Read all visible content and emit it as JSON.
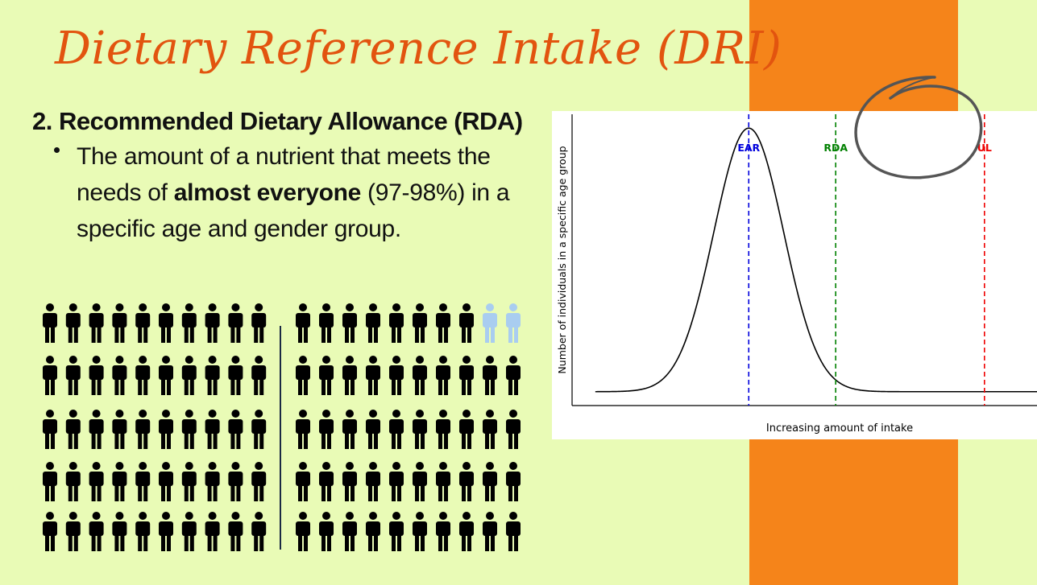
{
  "slide": {
    "title": "Dietary Reference Intake (DRI)",
    "section_heading": "2. Recommended Dietary Allowance (RDA)",
    "bullet": {
      "before": "The amount of a nutrient that meets the needs of ",
      "bold": "almost everyone",
      "after": " (97-98%) in a specific age and gender group."
    }
  },
  "colors": {
    "background": "#e9fbb6",
    "accent_band": "#f5841a",
    "title": "#e2540f",
    "person_met": "#000000",
    "person_unmet": "#a9cdf0",
    "ear": "#0000dd",
    "rda": "#008000",
    "ul": "#ee0000"
  },
  "pictogram": {
    "total_people": 100,
    "people_not_met": 2,
    "percent_needs_met": 98
  },
  "chart_data": {
    "type": "line",
    "title": "",
    "xlabel": "Increasing amount of intake",
    "ylabel": "Number of individuals in a specific age group",
    "curve": "normal distribution",
    "xlim": [
      0,
      10
    ],
    "ylim": [
      0,
      1.05
    ],
    "mean": 3.8,
    "sd": 0.75,
    "baseline": 0.05,
    "reference_lines": [
      {
        "label": "EAR",
        "x": 3.8,
        "color": "#0000dd"
      },
      {
        "label": "RDA",
        "x": 5.67,
        "color": "#008000"
      },
      {
        "label": "UL",
        "x": 8.87,
        "color": "#ee0000"
      }
    ],
    "grid": false,
    "legend": "none"
  }
}
